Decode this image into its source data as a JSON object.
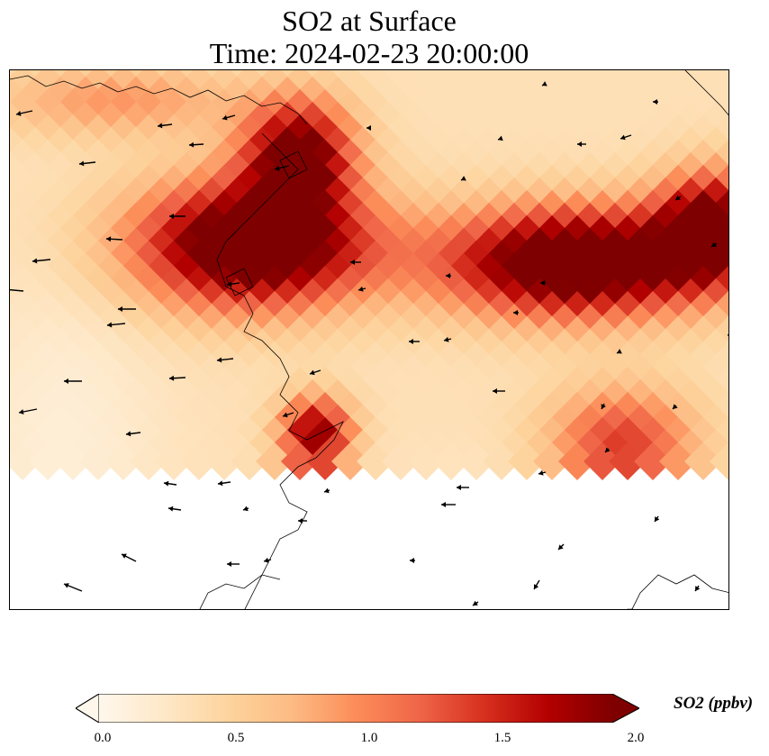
{
  "title": {
    "line1": "SO2 at Surface",
    "line2": "Time: 2024-02-23 20:00:00"
  },
  "colorbar": {
    "label": "SO2 (ppbv)",
    "ticks": [
      "0.0",
      "0.5",
      "1.0",
      "1.5",
      "2.0"
    ],
    "range": [
      0,
      2
    ],
    "extend": "both",
    "colormap": "OrRd",
    "stops": [
      "#fff7ec",
      "#fee8c8",
      "#fdd49e",
      "#fdbb84",
      "#fc8d59",
      "#ef6548",
      "#d7301f",
      "#b30000",
      "#7f0000"
    ]
  },
  "map": {
    "variable": "SO2",
    "level": "Surface",
    "units": "ppbv",
    "has_coastlines": true,
    "has_wind_vectors": true
  }
}
